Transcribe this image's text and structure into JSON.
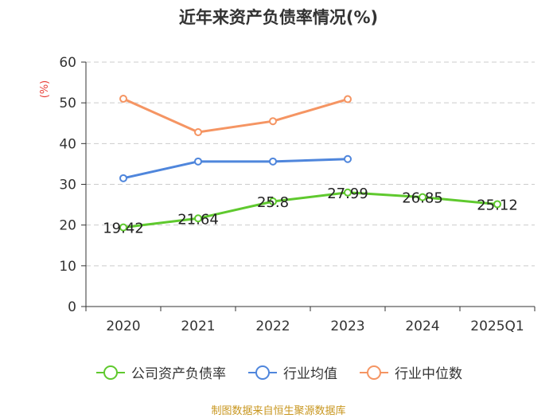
{
  "title": "近年来资产负债率情况(%)",
  "source": "制图数据来自恒生聚源数据库",
  "chart_data": {
    "type": "line",
    "title": "近年来资产负债率情况(%)",
    "ylabel": "(%)",
    "ylim": [
      0,
      60
    ],
    "yticks": [
      0,
      10,
      20,
      30,
      40,
      50,
      60
    ],
    "grid": true,
    "legend_position": "bottom",
    "categories": [
      "2020",
      "2021",
      "2022",
      "2023",
      "2024",
      "2025Q1"
    ],
    "series": [
      {
        "name": "公司资产负债率",
        "color": "#5fc92e",
        "values": [
          19.42,
          21.64,
          25.8,
          27.99,
          26.85,
          25.12
        ],
        "labels": [
          "19.42",
          "21.64",
          "25.8",
          "27.99",
          "26.85",
          "25.12"
        ]
      },
      {
        "name": "行业均值",
        "color": "#4f86dc",
        "values": [
          31.5,
          35.6,
          35.6,
          36.2,
          null,
          null
        ]
      },
      {
        "name": "行业中位数",
        "color": "#f59563",
        "values": [
          51.0,
          42.8,
          45.5,
          50.9,
          null,
          null
        ]
      }
    ]
  }
}
